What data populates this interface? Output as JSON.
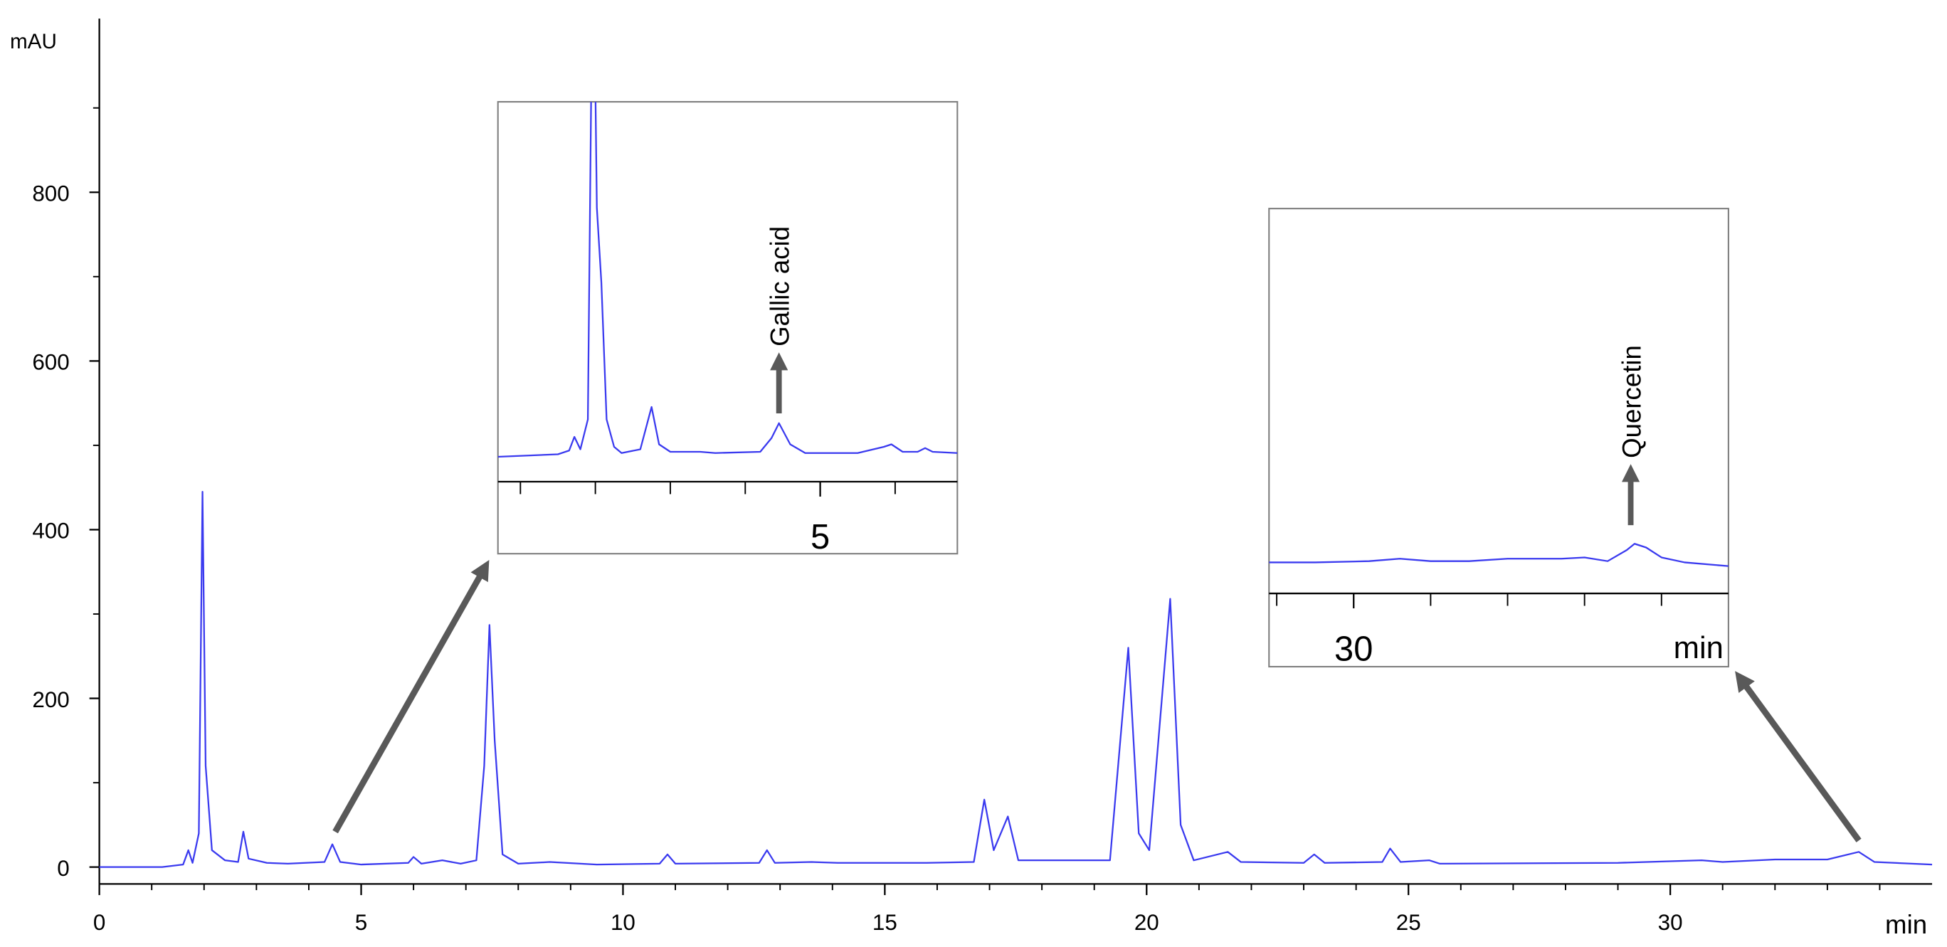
{
  "chart_data": [
    {
      "type": "line",
      "xlabel": "min",
      "ylabel": "mAU",
      "color": "#3a3aef",
      "xlim": [
        0,
        35
      ],
      "ylim": [
        -20,
        1000
      ],
      "xticks": [
        0,
        5,
        10,
        15,
        20,
        25,
        30
      ],
      "minor_xticks": [
        1,
        2,
        3,
        4,
        6,
        7,
        8,
        9,
        11,
        12,
        13,
        14,
        16,
        17,
        18,
        19,
        21,
        22,
        23,
        24,
        26,
        27,
        28,
        29,
        31,
        32,
        33,
        34
      ],
      "yticks": [
        0,
        200,
        400,
        600,
        800
      ],
      "minor_yticks": [
        100,
        300,
        500,
        700,
        900
      ],
      "x": [
        0,
        1.2,
        1.6,
        1.7,
        1.78,
        1.9,
        1.97,
        2.03,
        2.15,
        2.4,
        2.65,
        2.75,
        2.85,
        3.2,
        3.6,
        4.3,
        4.45,
        4.6,
        5.0,
        5.9,
        6.0,
        6.15,
        6.55,
        6.9,
        7.2,
        7.35,
        7.45,
        7.55,
        7.7,
        8.0,
        8.6,
        9.5,
        10.7,
        10.85,
        11.0,
        12.6,
        12.75,
        12.9,
        13.6,
        14.1,
        15.8,
        16.7,
        16.9,
        17.08,
        17.35,
        17.55,
        19.3,
        19.65,
        19.85,
        20.05,
        20.45,
        20.65,
        20.9,
        21.55,
        21.8,
        23.0,
        23.2,
        23.4,
        24.5,
        24.65,
        24.85,
        25.4,
        25.6,
        29,
        30.6,
        31,
        32,
        33,
        33.6,
        33.9,
        35
      ],
      "values": [
        0,
        0,
        3,
        20,
        5,
        40,
        445,
        120,
        20,
        8,
        6,
        42,
        10,
        5,
        4,
        6,
        27,
        6,
        3,
        5,
        12,
        4,
        8,
        4,
        8,
        120,
        287,
        150,
        15,
        4,
        6,
        3,
        4,
        15,
        4,
        5,
        20,
        5,
        6,
        5,
        5,
        6,
        80,
        20,
        60,
        8,
        8,
        260,
        40,
        20,
        318,
        50,
        8,
        18,
        6,
        5,
        15,
        5,
        6,
        22,
        6,
        8,
        4,
        5,
        8,
        6,
        9,
        9,
        18,
        6,
        3
      ]
    },
    {
      "type": "line",
      "color": "#3a3aef",
      "xlim": [
        0.7,
        6.83
      ],
      "ylim": [
        -20,
        285
      ],
      "xticks": [
        5
      ],
      "minor_xticks": [
        1,
        2,
        3,
        4,
        6
      ],
      "annotations": [
        {
          "text": "Gallic acid",
          "x": 4.45
        }
      ],
      "x": [
        0.7,
        1.5,
        1.65,
        1.72,
        1.8,
        1.9,
        1.97,
        2.02,
        2.08,
        2.15,
        2.25,
        2.35,
        2.6,
        2.75,
        2.85,
        3.0,
        3.4,
        3.6,
        4.2,
        4.35,
        4.45,
        4.6,
        4.8,
        5.5,
        5.85,
        5.95,
        6.1,
        6.3,
        6.4,
        6.5,
        6.83
      ],
      "values": [
        0,
        2,
        5,
        16,
        6,
        30,
        445,
        200,
        140,
        30,
        8,
        3,
        6,
        40,
        10,
        4,
        4,
        3,
        4,
        15,
        27,
        10,
        3,
        3,
        8,
        10,
        4,
        4,
        7,
        4,
        3
      ]
    },
    {
      "type": "line",
      "xlabel": "min",
      "color": "#3a3aef",
      "xlim": [
        28.9,
        34.87
      ],
      "ylim": [
        -25,
        285
      ],
      "xticks": [
        30
      ],
      "minor_xticks": [
        29,
        31,
        32,
        33,
        34
      ],
      "annotations": [
        {
          "text": "Quercetin",
          "x": 33.6
        }
      ],
      "x": [
        28.9,
        29.5,
        30.2,
        30.6,
        31,
        31.5,
        32,
        32.7,
        33.0,
        33.3,
        33.55,
        33.65,
        33.8,
        34.0,
        34.3,
        34.87
      ],
      "values": [
        0,
        0,
        1,
        3,
        1,
        1,
        3,
        3,
        4,
        1,
        10,
        15,
        12,
        4,
        0,
        -3
      ]
    }
  ]
}
